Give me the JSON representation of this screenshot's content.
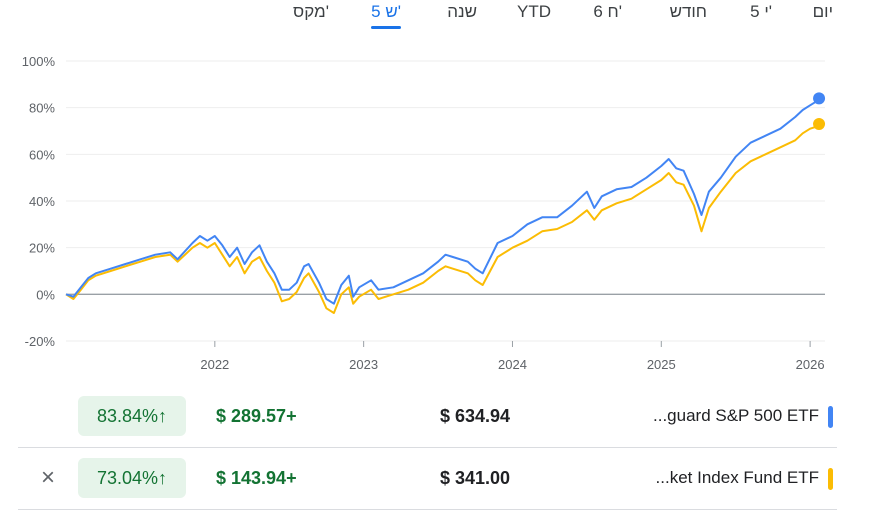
{
  "tabs": [
    {
      "label": "יום"
    },
    {
      "label": "5 י'"
    },
    {
      "label": "חודש"
    },
    {
      "label": "6 ח'"
    },
    {
      "label": "YTD"
    },
    {
      "label": "שנה"
    },
    {
      "label": "5 ש'"
    },
    {
      "label": "מקס'"
    }
  ],
  "active_tab": "5 ש'",
  "colors": {
    "blue": "#4285f4",
    "yellow": "#fbbc04",
    "baseline": "#9aa0a6",
    "grid": "#eeeeee",
    "axis_text": "#5f6368"
  },
  "chart_data": {
    "type": "line",
    "x_tick_labels": [
      "2022",
      "2023",
      "2024",
      "2025",
      "2026"
    ],
    "y_tick_labels": [
      "100%",
      "80%",
      "60%",
      "40%",
      "20%",
      "0%",
      "-20%"
    ],
    "ylim": [
      -20,
      100
    ],
    "xlim": [
      2021.0,
      2026.1
    ],
    "grid": true,
    "series": [
      {
        "color": "#4285f4",
        "points": [
          [
            2021.0,
            0
          ],
          [
            2021.05,
            -1
          ],
          [
            2021.1,
            3
          ],
          [
            2021.15,
            7
          ],
          [
            2021.2,
            9
          ],
          [
            2021.3,
            11
          ],
          [
            2021.4,
            13
          ],
          [
            2021.5,
            15
          ],
          [
            2021.6,
            17
          ],
          [
            2021.7,
            18
          ],
          [
            2021.75,
            15
          ],
          [
            2021.85,
            22
          ],
          [
            2021.9,
            25
          ],
          [
            2021.95,
            23
          ],
          [
            2022.0,
            25
          ],
          [
            2022.05,
            21
          ],
          [
            2022.1,
            16
          ],
          [
            2022.15,
            20
          ],
          [
            2022.2,
            13
          ],
          [
            2022.25,
            18
          ],
          [
            2022.3,
            21
          ],
          [
            2022.35,
            14
          ],
          [
            2022.4,
            9
          ],
          [
            2022.45,
            2
          ],
          [
            2022.5,
            2
          ],
          [
            2022.55,
            5
          ],
          [
            2022.6,
            12
          ],
          [
            2022.63,
            13
          ],
          [
            2022.7,
            5
          ],
          [
            2022.75,
            -2
          ],
          [
            2022.8,
            -4
          ],
          [
            2022.85,
            4
          ],
          [
            2022.9,
            8
          ],
          [
            2022.93,
            -1
          ],
          [
            2022.97,
            3
          ],
          [
            2023.05,
            6
          ],
          [
            2023.1,
            2
          ],
          [
            2023.2,
            3
          ],
          [
            2023.3,
            6
          ],
          [
            2023.4,
            9
          ],
          [
            2023.5,
            14
          ],
          [
            2023.55,
            17
          ],
          [
            2023.6,
            16
          ],
          [
            2023.7,
            14
          ],
          [
            2023.75,
            11
          ],
          [
            2023.8,
            9
          ],
          [
            2023.9,
            22
          ],
          [
            2024.0,
            25
          ],
          [
            2024.1,
            30
          ],
          [
            2024.2,
            33
          ],
          [
            2024.3,
            33
          ],
          [
            2024.4,
            38
          ],
          [
            2024.5,
            44
          ],
          [
            2024.55,
            37
          ],
          [
            2024.6,
            42
          ],
          [
            2024.7,
            45
          ],
          [
            2024.8,
            46
          ],
          [
            2024.9,
            50
          ],
          [
            2025.0,
            55
          ],
          [
            2025.05,
            58
          ],
          [
            2025.1,
            54
          ],
          [
            2025.15,
            53
          ],
          [
            2025.22,
            43
          ],
          [
            2025.27,
            34
          ],
          [
            2025.32,
            44
          ],
          [
            2025.4,
            50
          ],
          [
            2025.5,
            59
          ],
          [
            2025.6,
            65
          ],
          [
            2025.7,
            68
          ],
          [
            2025.8,
            71
          ],
          [
            2025.9,
            76
          ],
          [
            2025.95,
            79
          ],
          [
            2026.0,
            81
          ],
          [
            2026.05,
            83
          ],
          [
            2026.06,
            84
          ]
        ]
      },
      {
        "color": "#fbbc04",
        "points": [
          [
            2021.0,
            0
          ],
          [
            2021.05,
            -2
          ],
          [
            2021.1,
            2
          ],
          [
            2021.15,
            6
          ],
          [
            2021.2,
            8
          ],
          [
            2021.3,
            10
          ],
          [
            2021.4,
            12
          ],
          [
            2021.5,
            14
          ],
          [
            2021.6,
            16
          ],
          [
            2021.7,
            17
          ],
          [
            2021.75,
            14
          ],
          [
            2021.85,
            20
          ],
          [
            2021.9,
            22
          ],
          [
            2021.95,
            20
          ],
          [
            2022.0,
            22
          ],
          [
            2022.05,
            17
          ],
          [
            2022.1,
            12
          ],
          [
            2022.15,
            16
          ],
          [
            2022.2,
            9
          ],
          [
            2022.25,
            14
          ],
          [
            2022.3,
            16
          ],
          [
            2022.35,
            10
          ],
          [
            2022.4,
            5
          ],
          [
            2022.45,
            -3
          ],
          [
            2022.5,
            -2
          ],
          [
            2022.55,
            1
          ],
          [
            2022.6,
            7
          ],
          [
            2022.63,
            9
          ],
          [
            2022.7,
            1
          ],
          [
            2022.75,
            -6
          ],
          [
            2022.8,
            -8
          ],
          [
            2022.85,
            0
          ],
          [
            2022.9,
            3
          ],
          [
            2022.93,
            -4
          ],
          [
            2022.97,
            -1
          ],
          [
            2023.05,
            2
          ],
          [
            2023.1,
            -2
          ],
          [
            2023.2,
            0
          ],
          [
            2023.3,
            2
          ],
          [
            2023.4,
            5
          ],
          [
            2023.5,
            10
          ],
          [
            2023.55,
            12
          ],
          [
            2023.6,
            11
          ],
          [
            2023.7,
            9
          ],
          [
            2023.75,
            6
          ],
          [
            2023.8,
            4
          ],
          [
            2023.9,
            16
          ],
          [
            2024.0,
            20
          ],
          [
            2024.1,
            23
          ],
          [
            2024.2,
            27
          ],
          [
            2024.3,
            28
          ],
          [
            2024.4,
            31
          ],
          [
            2024.5,
            36
          ],
          [
            2024.55,
            32
          ],
          [
            2024.6,
            36
          ],
          [
            2024.7,
            39
          ],
          [
            2024.8,
            41
          ],
          [
            2024.9,
            45
          ],
          [
            2025.0,
            49
          ],
          [
            2025.05,
            52
          ],
          [
            2025.1,
            48
          ],
          [
            2025.15,
            47
          ],
          [
            2025.22,
            38
          ],
          [
            2025.27,
            27
          ],
          [
            2025.32,
            37
          ],
          [
            2025.4,
            44
          ],
          [
            2025.5,
            52
          ],
          [
            2025.6,
            57
          ],
          [
            2025.7,
            60
          ],
          [
            2025.8,
            63
          ],
          [
            2025.9,
            66
          ],
          [
            2025.95,
            69
          ],
          [
            2026.0,
            71
          ],
          [
            2026.05,
            72
          ],
          [
            2026.06,
            73
          ]
        ]
      }
    ]
  },
  "funds": [
    {
      "name": "...guard S&P 500 ETF",
      "price": "$ 634.94",
      "change": "$ 289.57+",
      "percent": "83.84%↑",
      "color": "#4285f4",
      "removable": false
    },
    {
      "name": "...ket Index Fund ETF",
      "price": "$ 341.00",
      "change": "$ 143.94+",
      "percent": "73.04%↑",
      "color": "#fbbc04",
      "removable": true,
      "close_icon": "×"
    }
  ]
}
